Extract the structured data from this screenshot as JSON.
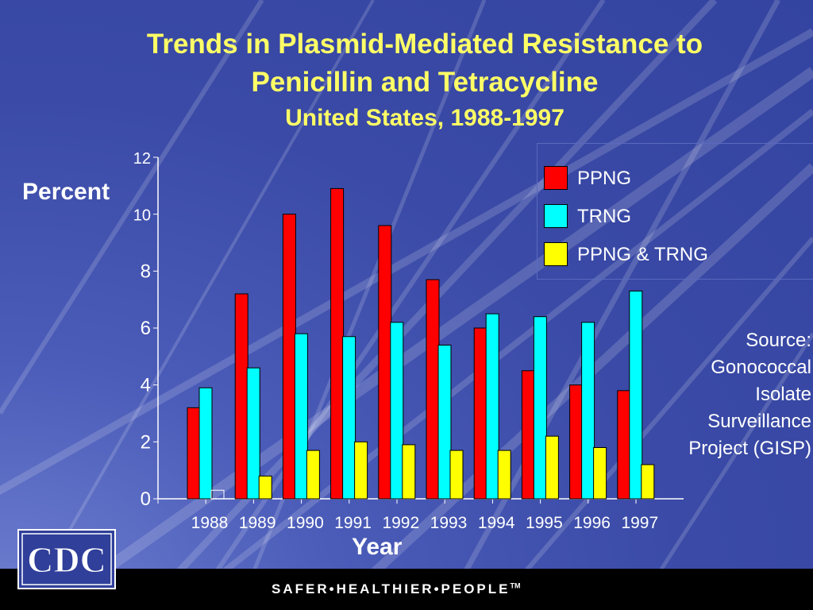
{
  "slide": {
    "title_line1": "Trends in Plasmid-Mediated Resistance to",
    "title_line2": "Penicillin and Tetracycline",
    "subtitle": "United States, 1988-1997",
    "source_lines": [
      "Source:",
      "Gonococcal",
      "Isolate",
      "Surveillance",
      "Project (GISP)"
    ],
    "footer_tagline": "SAFER•HEALTHIER•PEOPLE",
    "footer_tm": "TM",
    "logo_text": "CDC"
  },
  "colors": {
    "title": "#ffff66",
    "background": "#3a4aa6",
    "PPNG": "#ff0000",
    "TRNG": "#00ffff",
    "PPNG & TRNG": "#ffff00"
  },
  "chart_data": {
    "type": "bar",
    "title": "Trends in Plasmid-Mediated Resistance to Penicillin and Tetracycline",
    "subtitle": "United States, 1988-1997",
    "xlabel": "Year",
    "ylabel": "Percent",
    "ylim": [
      0,
      12
    ],
    "yticks": [
      "0",
      "2",
      "4",
      "6",
      "8",
      "10",
      "12"
    ],
    "categories": [
      "1988",
      "1989",
      "1990",
      "1991",
      "1992",
      "1993",
      "1994",
      "1995",
      "1996",
      "1997"
    ],
    "series": [
      {
        "name": "PPNG",
        "color": "#ff0000",
        "values": [
          3.2,
          7.2,
          10.0,
          10.9,
          9.6,
          7.7,
          6.0,
          4.5,
          4.0,
          3.8
        ]
      },
      {
        "name": "TRNG",
        "color": "#00ffff",
        "values": [
          3.9,
          4.6,
          5.8,
          5.7,
          6.2,
          5.4,
          6.5,
          6.4,
          6.2,
          7.3
        ]
      },
      {
        "name": "PPNG & TRNG",
        "color": "#ffff00",
        "values": [
          0.3,
          0.8,
          1.7,
          2.0,
          1.9,
          1.7,
          1.7,
          2.2,
          1.8,
          1.2
        ]
      }
    ],
    "grid": false,
    "legend_position": "top-right"
  }
}
